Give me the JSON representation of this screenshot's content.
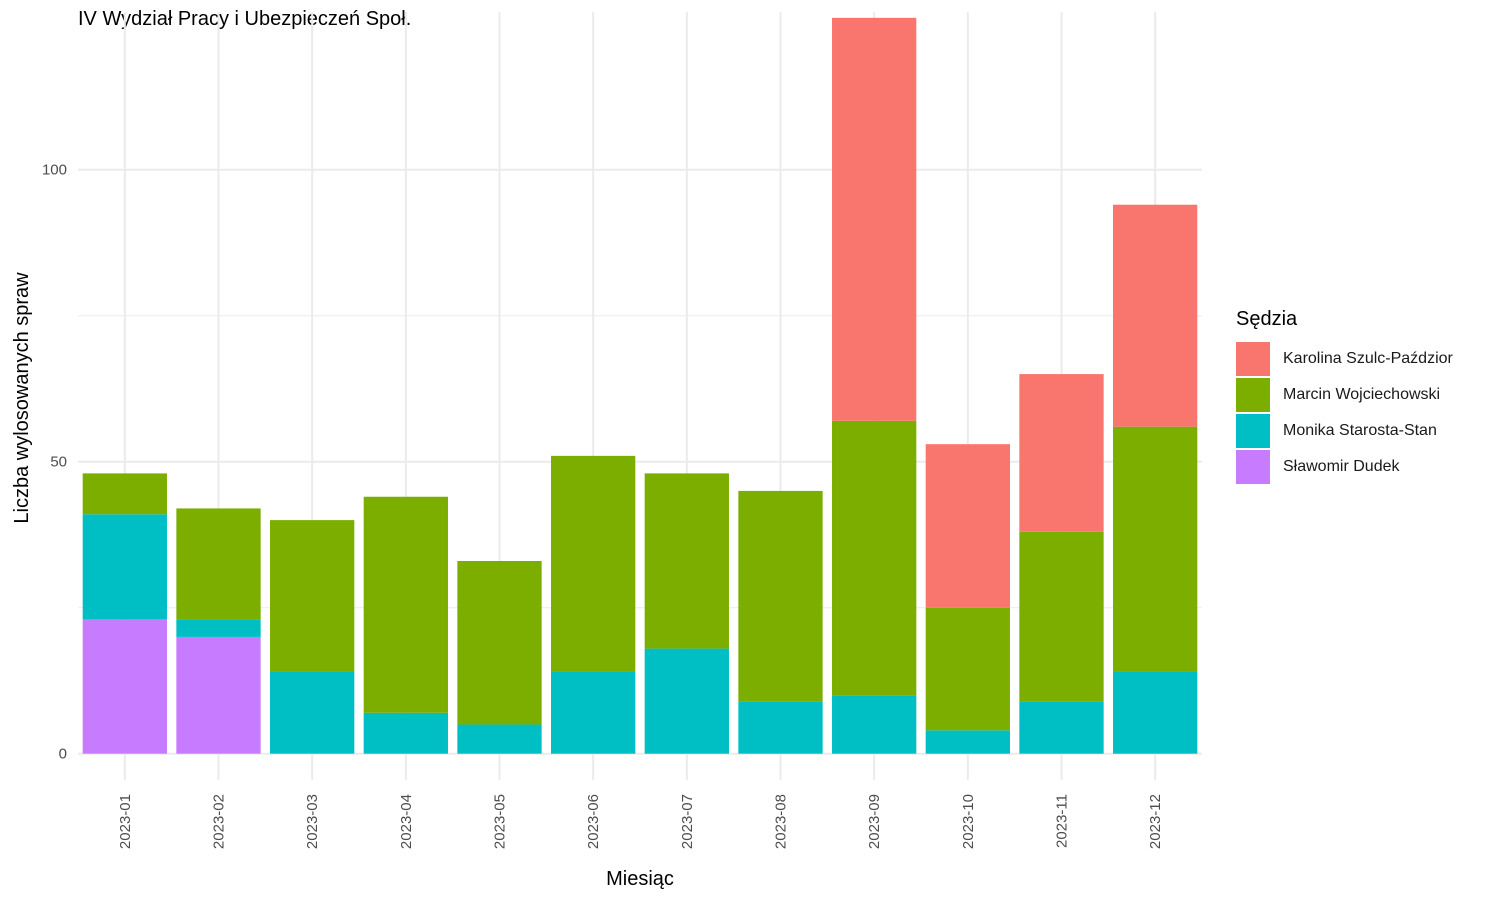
{
  "chart_data": {
    "type": "bar",
    "stacked": true,
    "title": "IV Wydział Pracy i Ubezpieczeń Społ.",
    "xlabel": "Miesiąc",
    "ylabel": "Liczba wylosowanych spraw",
    "ylim": [
      -4.5,
      127
    ],
    "yticks": [
      0,
      50,
      100
    ],
    "grid": true,
    "legend_title": "Sędzia",
    "legend_position": "right",
    "categories": [
      "2023-01",
      "2023-02",
      "2023-03",
      "2023-04",
      "2023-05",
      "2023-06",
      "2023-07",
      "2023-08",
      "2023-09",
      "2023-10",
      "2023-11",
      "2023-12"
    ],
    "series": [
      {
        "name": "Sławomir Dudek",
        "color": "#C77CFF",
        "values": [
          23,
          20,
          0,
          0,
          0,
          0,
          0,
          0,
          0,
          0,
          0,
          0
        ]
      },
      {
        "name": "Monika Starosta-Stan",
        "color": "#00BFC4",
        "values": [
          18,
          3,
          14,
          7,
          5,
          14,
          18,
          9,
          10,
          4,
          9,
          14
        ]
      },
      {
        "name": "Marcin Wojciechowski",
        "color": "#7CAE00",
        "values": [
          7,
          19,
          26,
          37,
          28,
          37,
          30,
          36,
          47,
          21,
          29,
          42
        ]
      },
      {
        "name": "Karolina Szulc-Paździor",
        "color": "#F8766D",
        "values": [
          0,
          0,
          0,
          0,
          0,
          0,
          0,
          0,
          69,
          28,
          27,
          38
        ]
      }
    ],
    "legend_order": [
      "Karolina Szulc-Paździor",
      "Marcin Wojciechowski",
      "Monika Starosta-Stan",
      "Sławomir Dudek"
    ]
  }
}
